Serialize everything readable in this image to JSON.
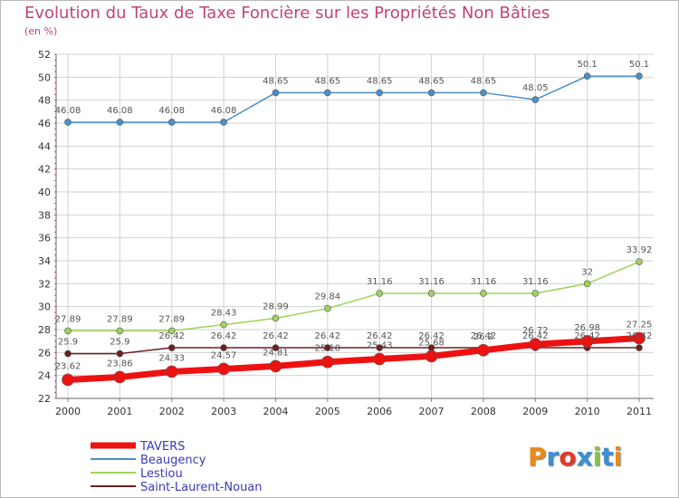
{
  "title": "Evolution du Taux de Taxe Foncière sur les Propriétés Non Bâties",
  "unit_label": "(en %)",
  "brand": {
    "logo_text": "Proxiti",
    "colors": [
      "#e88a1a",
      "#3d8fd0",
      "#e23a2a",
      "#3d8fd0",
      "#8bc34a",
      "#3d8fd0",
      "#e88a1a"
    ]
  },
  "chart_data": {
    "type": "line",
    "title": "Evolution du Taux de Taxe Foncière sur les Propriétés Non Bâties",
    "ylabel": "(en %)",
    "xlabel": "",
    "x": [
      "2000",
      "2001",
      "2002",
      "2003",
      "2004",
      "2005",
      "2006",
      "2007",
      "2008",
      "2009",
      "2010",
      "2011"
    ],
    "ylim": [
      22,
      52
    ],
    "yticks": [
      "22",
      "24",
      "26",
      "28",
      "30",
      "32",
      "34",
      "36",
      "38",
      "40",
      "42",
      "44",
      "46",
      "48",
      "50",
      "52"
    ],
    "grid": true,
    "legend_position": "bottom-left",
    "series": [
      {
        "name": "Beaugency",
        "color": "#4a90c8",
        "values": [
          46.08,
          46.08,
          46.08,
          46.08,
          48.65,
          48.65,
          48.65,
          48.65,
          48.65,
          48.05,
          50.1,
          50.1
        ],
        "labels": [
          "46.08",
          "46.08",
          "46.08",
          "46.08",
          "48.65",
          "48.65",
          "48.65",
          "48.65",
          "48.65",
          "48.05",
          "50.1",
          "50.1"
        ]
      },
      {
        "name": "Lestiou",
        "color": "#9ed45a",
        "values": [
          27.89,
          27.89,
          27.89,
          28.43,
          28.99,
          29.84,
          31.16,
          31.16,
          31.16,
          31.16,
          32.0,
          33.92
        ],
        "labels": [
          "27.89",
          "27.89",
          "27.89",
          "28.43",
          "28.99",
          "29.84",
          "31.16",
          "31.16",
          "31.16",
          "31.16",
          "32",
          "33.92"
        ]
      },
      {
        "name": "Saint-Laurent-Nouan",
        "color": "#6e1e1e",
        "values": [
          25.9,
          25.9,
          26.42,
          26.42,
          26.42,
          26.42,
          26.42,
          26.42,
          26.42,
          26.42,
          26.42,
          26.42
        ],
        "labels": [
          "25.9",
          "25.9",
          "26.42",
          "26.42",
          "26.42",
          "26.42",
          "26.42",
          "26.42",
          "26.42",
          "26.42",
          "26.42",
          "26.42"
        ]
      },
      {
        "name": "TAVERS",
        "color": "#ee1111",
        "values": [
          23.62,
          23.86,
          24.33,
          24.57,
          24.81,
          25.18,
          25.43,
          25.68,
          26.2,
          26.72,
          26.98,
          27.25
        ],
        "labels": [
          "23.62",
          "23.86",
          "24.33",
          "24.57",
          "24.81",
          "25.18",
          "25.43",
          "25.68",
          "26.2",
          "26.72",
          "26.98",
          "27.25"
        ]
      }
    ],
    "legend": [
      "TAVERS",
      "Beaugency",
      "Lestiou",
      "Saint-Laurent-Nouan"
    ]
  }
}
